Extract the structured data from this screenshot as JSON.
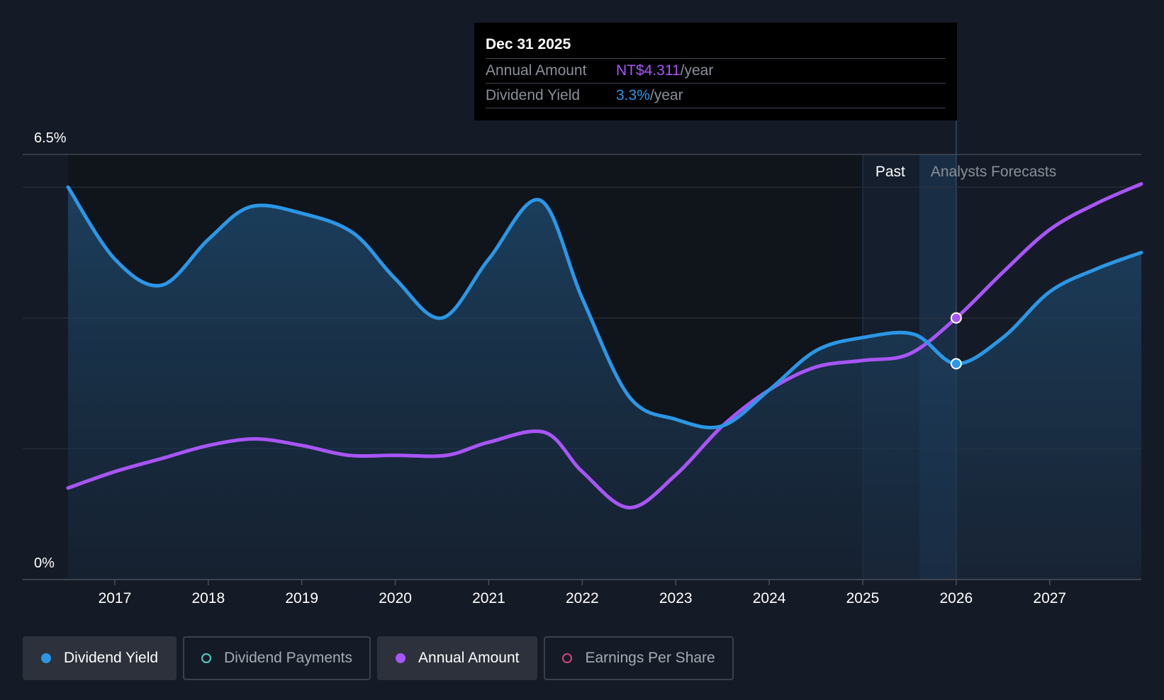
{
  "tooltip": {
    "date": "Dec 31 2025",
    "annual_label": "Annual Amount",
    "annual_value": "NT$4.311",
    "yield_label": "Dividend Yield",
    "yield_value": "3.3%",
    "unit": "/year"
  },
  "legend": [
    {
      "label": "Dividend Yield",
      "color": "#2b97e6",
      "active": true
    },
    {
      "label": "Dividend Payments",
      "color": "#4fd1c5",
      "active": false
    },
    {
      "label": "Annual Amount",
      "color": "#a855f7",
      "active": true
    },
    {
      "label": "Earnings Per Share",
      "color": "#d0457a",
      "active": false
    }
  ],
  "colors": {
    "yield": "#2b97e6",
    "amount": "#a855f7",
    "background": "#151b26"
  },
  "chart_data": {
    "type": "line",
    "y_tick_labels": [
      "6.5%",
      "0%"
    ],
    "ylim": [
      0,
      6.5
    ],
    "xlim": [
      2016.5,
      2027.98
    ],
    "x_tick_labels": [
      "2017",
      "2018",
      "2019",
      "2020",
      "2021",
      "2022",
      "2023",
      "2024",
      "2025",
      "2026",
      "2027"
    ],
    "x_ticks": [
      2017,
      2018,
      2019,
      2020,
      2021,
      2022,
      2023,
      2024,
      2025,
      2026,
      2027
    ],
    "grid": true,
    "regions": [
      {
        "label": "Past",
        "from": 2025,
        "to": 2026
      },
      {
        "label": "Analysts Forecasts",
        "from": 2026,
        "to": 2027.98
      }
    ],
    "series": [
      {
        "name": "Dividend Yield",
        "fill": true,
        "points": [
          [
            2016.5,
            6.0
          ],
          [
            2017.0,
            4.9
          ],
          [
            2017.5,
            4.5
          ],
          [
            2018.0,
            5.2
          ],
          [
            2018.45,
            5.7
          ],
          [
            2019.0,
            5.6
          ],
          [
            2019.55,
            5.3
          ],
          [
            2020.0,
            4.6
          ],
          [
            2020.5,
            4.0
          ],
          [
            2021.0,
            4.9
          ],
          [
            2021.55,
            5.8
          ],
          [
            2022.0,
            4.3
          ],
          [
            2022.5,
            2.8
          ],
          [
            2023.0,
            2.45
          ],
          [
            2023.5,
            2.35
          ],
          [
            2024.0,
            2.9
          ],
          [
            2024.5,
            3.5
          ],
          [
            2025.0,
            3.7
          ],
          [
            2025.55,
            3.75
          ],
          [
            2026.0,
            3.3
          ],
          [
            2026.5,
            3.7
          ],
          [
            2027.0,
            4.4
          ],
          [
            2027.5,
            4.75
          ],
          [
            2027.98,
            5.0
          ]
        ]
      },
      {
        "name": "Annual Amount",
        "fill": false,
        "points": [
          [
            2016.5,
            1.4
          ],
          [
            2017.0,
            1.65
          ],
          [
            2017.5,
            1.85
          ],
          [
            2018.0,
            2.05
          ],
          [
            2018.5,
            2.15
          ],
          [
            2019.0,
            2.05
          ],
          [
            2019.5,
            1.9
          ],
          [
            2020.0,
            1.9
          ],
          [
            2020.55,
            1.9
          ],
          [
            2021.0,
            2.1
          ],
          [
            2021.6,
            2.25
          ],
          [
            2022.0,
            1.65
          ],
          [
            2022.5,
            1.1
          ],
          [
            2023.0,
            1.6
          ],
          [
            2023.5,
            2.35
          ],
          [
            2024.0,
            2.9
          ],
          [
            2024.5,
            3.25
          ],
          [
            2025.0,
            3.35
          ],
          [
            2025.5,
            3.45
          ],
          [
            2026.0,
            4.0
          ],
          [
            2026.5,
            4.7
          ],
          [
            2027.0,
            5.35
          ],
          [
            2027.5,
            5.75
          ],
          [
            2027.98,
            6.05
          ]
        ]
      }
    ],
    "highlight_x": 2026.0,
    "highlight_values": {
      "Dividend Yield": 3.3,
      "Annual Amount": 4.0
    }
  }
}
